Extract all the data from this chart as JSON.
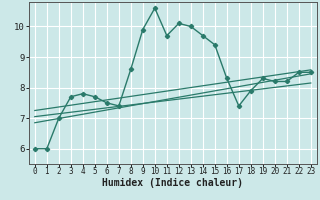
{
  "xlabel": "Humidex (Indice chaleur)",
  "xlim": [
    -0.5,
    23.5
  ],
  "ylim": [
    5.5,
    10.8
  ],
  "yticks": [
    6,
    7,
    8,
    9,
    10
  ],
  "xticks": [
    0,
    1,
    2,
    3,
    4,
    5,
    6,
    7,
    8,
    9,
    10,
    11,
    12,
    13,
    14,
    15,
    16,
    17,
    18,
    19,
    20,
    21,
    22,
    23
  ],
  "bg_color": "#cce8e8",
  "grid_color": "#ffffff",
  "line_color": "#2a7a6a",
  "curve1_x": [
    0,
    1,
    2,
    3,
    4,
    5,
    6,
    7,
    8,
    9,
    10,
    11,
    12,
    13,
    14,
    15,
    16,
    17,
    18,
    19,
    20,
    21,
    22,
    23
  ],
  "curve1_y": [
    6.0,
    6.0,
    7.0,
    7.7,
    7.8,
    7.7,
    7.5,
    7.4,
    8.6,
    9.9,
    10.6,
    9.7,
    10.1,
    10.0,
    9.7,
    9.4,
    8.3,
    7.4,
    7.9,
    8.3,
    8.2,
    8.2,
    8.5,
    8.5
  ],
  "line1_x": [
    0,
    23
  ],
  "line1_y": [
    6.85,
    8.45
  ],
  "line2_x": [
    0,
    23
  ],
  "line2_y": [
    7.25,
    8.58
  ],
  "line3_x": [
    0,
    23
  ],
  "line3_y": [
    7.05,
    8.15
  ]
}
